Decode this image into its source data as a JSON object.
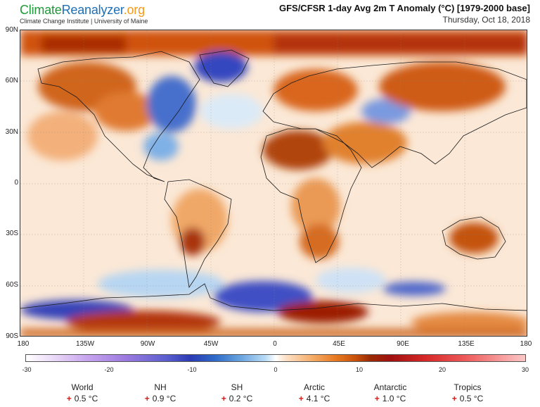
{
  "brand": {
    "part1": "Climate",
    "part2": "Reanalyzer",
    "part3": ".org",
    "subtitle": "Climate Change Institute | University of Maine"
  },
  "map": {
    "title": "GFS/CFSR 1-day Avg 2m T Anomaly (°C) [1979-2000 base]",
    "date": "Thursday, Oct 18, 2018",
    "lat_labels": [
      "90N",
      "60N",
      "30N",
      "0",
      "30S",
      "60S",
      "90S"
    ],
    "lon_labels": [
      "180",
      "135W",
      "90W",
      "45W",
      "0",
      "45E",
      "90E",
      "135E",
      "180"
    ]
  },
  "colorbar": {
    "ticks": [
      "-30",
      "-20",
      "-10",
      "0",
      "10",
      "20",
      "30"
    ],
    "colors": {
      "cold_extreme": "#2b3bb4",
      "cold": "#6aa4e0",
      "neutral": "#ffffff",
      "warm": "#e87a22",
      "warm_extreme": "#a11010"
    }
  },
  "stats": [
    {
      "name": "World",
      "sign": "+",
      "value": "0.5 °C"
    },
    {
      "name": "NH",
      "sign": "+",
      "value": "0.9 °C"
    },
    {
      "name": "SH",
      "sign": "+",
      "value": "0.2 °C"
    },
    {
      "name": "Arctic",
      "sign": "+",
      "value": "4.1 °C"
    },
    {
      "name": "Antarctic",
      "sign": "+",
      "value": "1.0 °C"
    },
    {
      "name": "Tropics",
      "sign": "+",
      "value": "0.5 °C"
    }
  ]
}
